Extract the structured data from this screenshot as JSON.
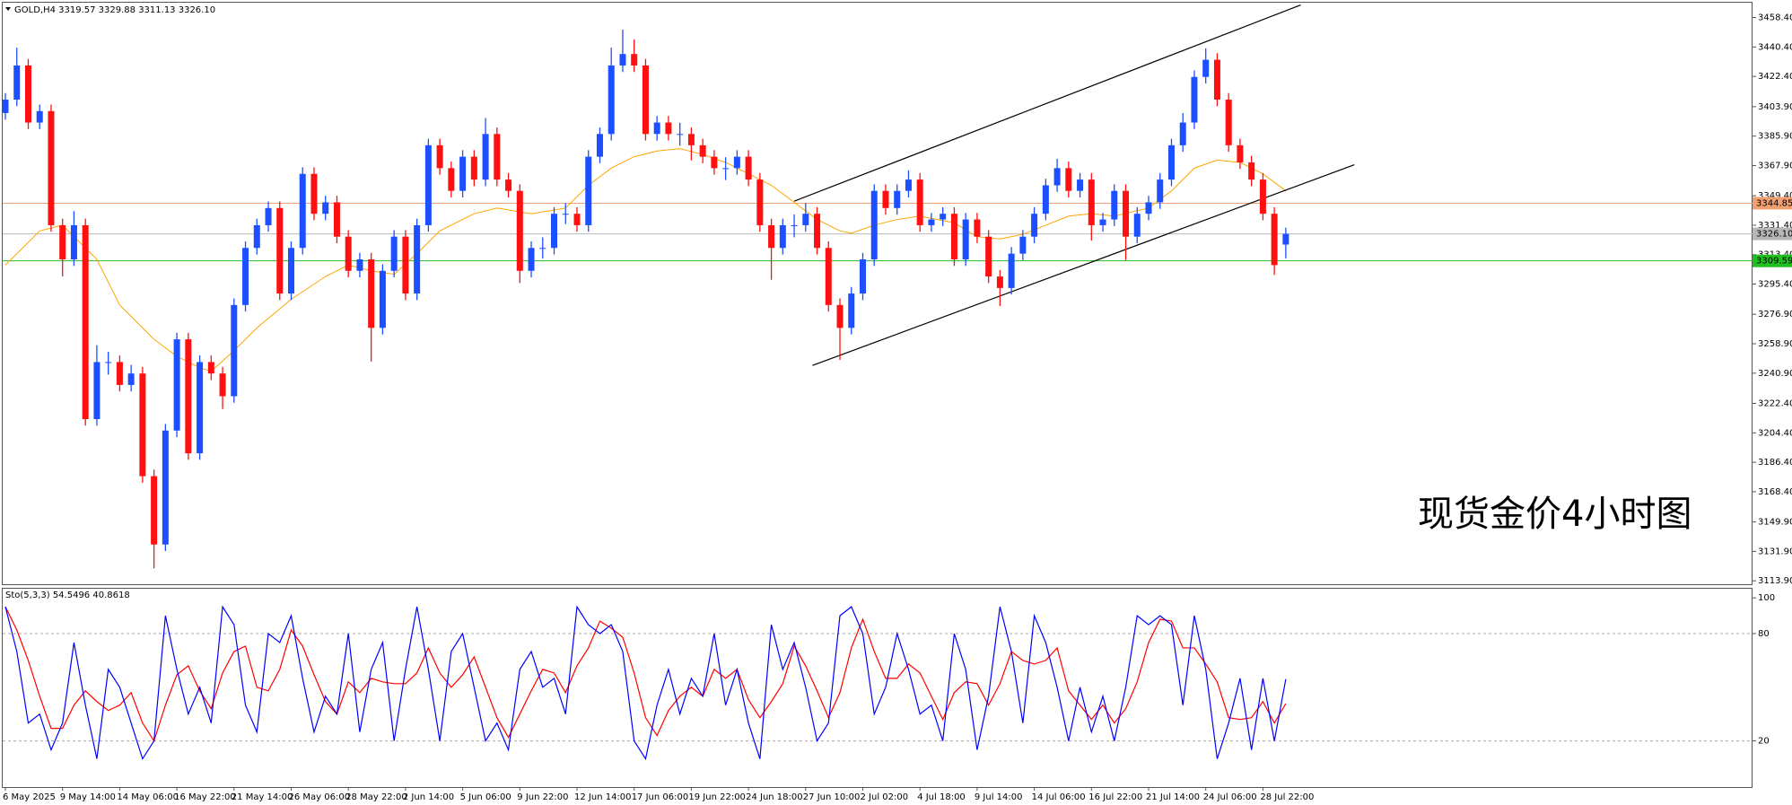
{
  "chart_data": [
    {
      "type": "candlestick",
      "title": "GOLD,H4  3319.57 3329.88 3311.13 3326.10",
      "annotation": "现货金价4小时图",
      "up_color": "#1c4fff",
      "down_color": "#ff1010",
      "categories": [
        "6 May 2025",
        null,
        null,
        null,
        null,
        "9 May 14:00",
        null,
        null,
        null,
        null,
        "14 May 06:00",
        null,
        null,
        null,
        null,
        "16 May 22:00",
        null,
        null,
        null,
        null,
        "21 May 14:00",
        null,
        null,
        null,
        null,
        "26 May 06:00",
        null,
        null,
        null,
        null,
        "28 May 22:00",
        null,
        null,
        null,
        null,
        "2 Jun 14:00",
        null,
        null,
        null,
        null,
        "5 Jun 06:00",
        null,
        null,
        null,
        null,
        "9 Jun 22:00",
        null,
        null,
        null,
        null,
        "12 Jun 14:00",
        null,
        null,
        null,
        null,
        "17 Jun 06:00",
        null,
        null,
        null,
        null,
        "19 Jun 22:00",
        null,
        null,
        null,
        null,
        "24 Jun 18:00",
        null,
        null,
        null,
        null,
        "27 Jun 10:00",
        null,
        null,
        null,
        null,
        "2 Jul 02:00",
        null,
        null,
        null,
        null,
        "4 Jul 18:00",
        null,
        null,
        null,
        null,
        "9 Jul 14:00",
        null,
        null,
        null,
        null,
        "14 Jul 06:00",
        null,
        null,
        null,
        null,
        "16 Jul 22:00",
        null,
        null,
        null,
        null,
        "21 Jul 14:00",
        null,
        null,
        null,
        null,
        "24 Jul 06:00",
        null,
        null,
        null,
        null,
        "28 Jul 22:00",
        null,
        null
      ],
      "open": [
        3400.0,
        3408.2,
        3429.1,
        3394.2,
        3401.2,
        3331.4,
        3310.5,
        3331.4,
        3212.8,
        3247.7,
        3247.7,
        3233.7,
        3240.7,
        3177.9,
        3136.1,
        3205.8,
        3261.6,
        3191.9,
        3247.7,
        3240.7,
        3226.8,
        3282.6,
        3317.5,
        3331.4,
        3341.9,
        3289.6,
        3317.5,
        3362.8,
        3338.4,
        3345.4,
        3324.4,
        3303.5,
        3310.5,
        3268.6,
        3303.5,
        3324.4,
        3289.6,
        3331.4,
        3380.3,
        3366.3,
        3352.4,
        3373.3,
        3359.3,
        3387.2,
        3359.3,
        3352.4,
        3303.5,
        3317.5,
        3317.5,
        3338.4,
        3338.4,
        3331.4,
        3373.3,
        3387.2,
        3429.1,
        3436.1,
        3429.1,
        3387.2,
        3394.2,
        3387.2,
        3387.2,
        3380.3,
        3373.3,
        3366.3,
        3366.3,
        3373.3,
        3359.3,
        3331.4,
        3317.5,
        3331.4,
        3331.4,
        3338.4,
        3317.5,
        3282.6,
        3268.6,
        3289.6,
        3310.5,
        3352.4,
        3341.9,
        3352.4,
        3359.3,
        3331.4,
        3334.9,
        3338.4,
        3310.5,
        3334.9,
        3324.4,
        3300.0,
        3293.0,
        3314.0,
        3324.4,
        3338.4,
        3355.8,
        3366.3,
        3352.4,
        3359.3,
        3331.4,
        3334.9,
        3352.4,
        3324.4,
        3338.4,
        3345.4,
        3359.3,
        3380.3,
        3394.2,
        3422.1,
        3432.6,
        3408.2,
        3380.3,
        3369.8,
        3359.3,
        3338.4,
        3319.57
      ],
      "high": [
        3412.2,
        3440.0,
        3433.1,
        3405.2,
        3405.2,
        3335.4,
        3340.0,
        3335.4,
        3258.0,
        3254.0,
        3251.7,
        3246.0,
        3244.7,
        3181.9,
        3209.8,
        3265.6,
        3265.6,
        3251.7,
        3251.7,
        3244.7,
        3286.6,
        3321.5,
        3335.4,
        3345.9,
        3345.9,
        3321.5,
        3366.8,
        3366.8,
        3349.4,
        3349.4,
        3328.4,
        3314.5,
        3314.5,
        3307.5,
        3328.4,
        3328.4,
        3335.4,
        3384.3,
        3384.3,
        3370.3,
        3377.3,
        3377.3,
        3397.0,
        3391.2,
        3363.3,
        3356.4,
        3321.5,
        3324.0,
        3342.4,
        3345.0,
        3342.4,
        3377.3,
        3391.2,
        3440.0,
        3451.0,
        3445.0,
        3433.1,
        3398.2,
        3398.2,
        3394.0,
        3391.2,
        3384.3,
        3377.3,
        3373.0,
        3377.3,
        3377.3,
        3363.3,
        3335.4,
        3335.4,
        3338.0,
        3345.0,
        3342.4,
        3321.5,
        3286.6,
        3293.6,
        3314.5,
        3356.4,
        3356.4,
        3356.4,
        3365.0,
        3363.3,
        3338.9,
        3342.4,
        3342.4,
        3338.9,
        3338.9,
        3328.4,
        3304.0,
        3318.0,
        3328.4,
        3342.4,
        3359.8,
        3372.0,
        3370.3,
        3363.3,
        3363.3,
        3338.9,
        3356.4,
        3356.4,
        3342.4,
        3349.4,
        3363.3,
        3384.3,
        3400.0,
        3426.1,
        3439.6,
        3436.6,
        3412.2,
        3384.3,
        3373.8,
        3363.3,
        3342.4,
        3329.88
      ],
      "low": [
        3396.0,
        3404.2,
        3390.2,
        3390.2,
        3327.4,
        3300.0,
        3306.5,
        3208.8,
        3208.8,
        3240.0,
        3229.7,
        3229.7,
        3173.9,
        3121.5,
        3132.1,
        3201.8,
        3187.9,
        3187.9,
        3236.7,
        3219.0,
        3222.8,
        3278.6,
        3313.5,
        3327.4,
        3285.6,
        3285.6,
        3313.5,
        3334.4,
        3334.4,
        3320.4,
        3299.5,
        3299.5,
        3248.0,
        3264.6,
        3299.5,
        3285.6,
        3285.6,
        3327.4,
        3362.3,
        3348.4,
        3348.4,
        3355.3,
        3355.3,
        3355.3,
        3348.4,
        3296.0,
        3299.5,
        3311.0,
        3313.5,
        3332.0,
        3327.4,
        3327.4,
        3369.3,
        3383.2,
        3425.1,
        3425.1,
        3383.2,
        3383.2,
        3383.2,
        3380.0,
        3371.0,
        3369.3,
        3362.3,
        3359.0,
        3362.3,
        3355.3,
        3327.4,
        3298.0,
        3313.5,
        3324.0,
        3327.4,
        3313.5,
        3278.6,
        3249.0,
        3264.6,
        3285.6,
        3306.5,
        3337.9,
        3337.9,
        3348.4,
        3327.4,
        3327.4,
        3330.9,
        3306.5,
        3306.5,
        3320.4,
        3296.0,
        3282.0,
        3289.0,
        3310.0,
        3320.4,
        3334.4,
        3351.8,
        3348.4,
        3348.4,
        3322.0,
        3327.4,
        3330.9,
        3310.0,
        3320.4,
        3334.4,
        3341.4,
        3355.3,
        3376.3,
        3390.2,
        3418.1,
        3404.2,
        3376.3,
        3365.8,
        3355.3,
        3334.4,
        3301.0,
        3311.13
      ],
      "close": [
        3408.2,
        3429.1,
        3394.2,
        3401.2,
        3331.4,
        3310.5,
        3331.4,
        3212.8,
        3247.7,
        3247.7,
        3233.7,
        3240.7,
        3177.9,
        3136.1,
        3205.8,
        3261.6,
        3191.9,
        3247.7,
        3240.7,
        3226.8,
        3282.6,
        3317.5,
        3331.4,
        3341.9,
        3289.6,
        3317.5,
        3362.8,
        3338.4,
        3345.4,
        3324.4,
        3303.5,
        3310.5,
        3268.6,
        3303.5,
        3324.4,
        3289.6,
        3331.4,
        3380.3,
        3366.3,
        3352.4,
        3373.3,
        3359.3,
        3387.2,
        3359.3,
        3352.4,
        3303.5,
        3317.5,
        3317.5,
        3338.4,
        3338.4,
        3331.4,
        3373.3,
        3387.2,
        3429.1,
        3436.1,
        3429.1,
        3387.2,
        3394.2,
        3387.2,
        3387.2,
        3380.3,
        3373.3,
        3366.3,
        3366.3,
        3373.3,
        3359.3,
        3331.4,
        3317.5,
        3331.4,
        3331.4,
        3338.4,
        3317.5,
        3282.6,
        3268.6,
        3289.6,
        3310.5,
        3352.4,
        3341.9,
        3352.4,
        3359.3,
        3331.4,
        3334.9,
        3338.4,
        3310.5,
        3334.9,
        3324.4,
        3300.0,
        3293.0,
        3314.0,
        3324.4,
        3338.4,
        3355.8,
        3366.3,
        3352.4,
        3359.3,
        3331.4,
        3334.9,
        3352.4,
        3324.4,
        3338.4,
        3345.4,
        3359.3,
        3380.3,
        3394.2,
        3422.1,
        3432.6,
        3408.2,
        3380.3,
        3369.8,
        3359.3,
        3338.4,
        3307.0,
        3326.1
      ],
      "overlays": [
        {
          "color": "#ffa500",
          "x": [
            0,
            3,
            5,
            8,
            10,
            13,
            15,
            17,
            18,
            20,
            22,
            25,
            28,
            30,
            32,
            34,
            36,
            38,
            41,
            43,
            46,
            49,
            51,
            53,
            55,
            57,
            59,
            61,
            63,
            65,
            67,
            69,
            71,
            73,
            74,
            76,
            78,
            80,
            83,
            85,
            87,
            89,
            91,
            93,
            95,
            97,
            100,
            102,
            104,
            106,
            108,
            110,
            112
          ],
          "values": [
            3307.0,
            3327.9,
            3331.4,
            3310.5,
            3282.6,
            3261.6,
            3251.2,
            3244.2,
            3242.1,
            3254.7,
            3268.6,
            3286.1,
            3300.0,
            3307.0,
            3303.5,
            3301.4,
            3314.0,
            3327.9,
            3338.4,
            3341.9,
            3338.4,
            3341.9,
            3355.8,
            3366.3,
            3373.3,
            3376.8,
            3378.2,
            3374.7,
            3369.8,
            3362.8,
            3355.8,
            3345.4,
            3334.9,
            3327.9,
            3326.5,
            3331.4,
            3334.9,
            3337.0,
            3332.8,
            3324.4,
            3323.0,
            3325.8,
            3331.4,
            3337.0,
            3338.4,
            3337.0,
            3341.9,
            3352.4,
            3366.3,
            3371.2,
            3369.8,
            3362.8,
            3352.4
          ]
        }
      ],
      "hlines": [
        {
          "value": 3344.85,
          "label": "3344.85",
          "color": "#f0a070"
        },
        {
          "value": 3326.1,
          "label": "3326.10",
          "color": "#b8b8b8"
        },
        {
          "value": 3309.59,
          "label": "3309.59",
          "color": "#20c020"
        }
      ],
      "trendlines": [
        {
          "x": [
            69.0,
            113.3
          ],
          "y": [
            3346.1,
            3466.1
          ],
          "color": "#000000"
        },
        {
          "x": [
            70.6,
            118.0
          ],
          "y": [
            3245.6,
            3368.4
          ],
          "color": "#000000"
        }
      ],
      "ylim": [
        3111.8,
        3467.5
      ],
      "yticks": [
        {
          "value": 3458.4,
          "label": "3458.40"
        },
        {
          "value": 3440.4,
          "label": "3440.40"
        },
        {
          "value": 3422.4,
          "label": "3422.40"
        },
        {
          "value": 3403.9,
          "label": "3403.90"
        },
        {
          "value": 3385.9,
          "label": "3385.90"
        },
        {
          "value": 3367.9,
          "label": "3367.90"
        },
        {
          "value": 3349.4,
          "label": "3349.40"
        },
        {
          "value": 3331.4,
          "label": "3331.40"
        },
        {
          "value": 3313.4,
          "label": "3313.40"
        },
        {
          "value": 3295.4,
          "label": "3295.40"
        },
        {
          "value": 3276.9,
          "label": "3276.90"
        },
        {
          "value": 3258.9,
          "label": "3258.90"
        },
        {
          "value": 3240.9,
          "label": "3240.90"
        },
        {
          "value": 3222.4,
          "label": "3222.40"
        },
        {
          "value": 3204.4,
          "label": "3204.40"
        },
        {
          "value": 3186.4,
          "label": "3186.40"
        },
        {
          "value": 3168.4,
          "label": "3168.40"
        },
        {
          "value": 3149.9,
          "label": "3149.90"
        },
        {
          "value": 3131.9,
          "label": "3131.90"
        },
        {
          "value": 3113.9,
          "label": "3113.90"
        }
      ]
    },
    {
      "type": "line",
      "title": "Sto(5,3,3) 54.5496 40.8618",
      "series": [
        {
          "color": "#0000ff",
          "values": [
            95,
            70,
            30,
            35,
            15,
            30,
            75,
            40,
            10,
            60,
            50,
            30,
            10,
            20,
            90,
            60,
            35,
            50,
            30,
            95,
            85,
            40,
            25,
            80,
            75,
            90,
            55,
            25,
            45,
            35,
            80,
            25,
            60,
            75,
            20,
            60,
            95,
            60,
            20,
            70,
            80,
            50,
            20,
            30,
            15,
            60,
            70,
            50,
            55,
            35,
            95,
            85,
            80,
            85,
            70,
            20,
            10,
            40,
            60,
            35,
            55,
            45,
            80,
            40,
            60,
            30,
            10,
            85,
            60,
            75,
            50,
            20,
            30,
            90,
            95,
            80,
            35,
            50,
            80,
            60,
            35,
            40,
            20,
            80,
            60,
            15,
            45,
            95,
            70,
            30,
            90,
            75,
            50,
            20,
            50,
            25,
            45,
            20,
            50,
            90,
            85,
            90,
            85,
            40,
            90,
            60,
            10,
            30,
            55,
            15,
            55,
            20,
            54.5496
          ]
        },
        {
          "color": "#ff0000",
          "values": [
            95,
            82,
            65,
            45,
            27,
            27,
            40,
            48,
            42,
            37,
            40,
            47,
            30,
            20,
            40,
            57,
            62,
            48,
            38,
            58,
            70,
            73,
            50,
            48,
            60,
            82,
            73,
            57,
            42,
            35,
            53,
            47,
            55,
            53,
            52,
            52,
            58,
            72,
            58,
            50,
            57,
            67,
            50,
            33,
            22,
            35,
            48,
            60,
            58,
            47,
            62,
            72,
            87,
            83,
            78,
            58,
            33,
            23,
            37,
            45,
            50,
            45,
            60,
            55,
            60,
            43,
            33,
            42,
            52,
            73,
            62,
            48,
            33,
            47,
            72,
            88,
            70,
            55,
            55,
            63,
            58,
            45,
            32,
            47,
            53,
            52,
            40,
            52,
            70,
            65,
            63,
            65,
            72,
            48,
            40,
            32,
            40,
            30,
            38,
            53,
            75,
            88,
            87,
            72,
            72,
            63,
            53,
            33,
            32,
            33,
            42,
            30,
            40.8618
          ]
        }
      ],
      "levels": [
        80,
        20
      ],
      "ylim": [
        -5.8,
        105.1
      ],
      "yticks": [
        100,
        80,
        20
      ]
    }
  ]
}
